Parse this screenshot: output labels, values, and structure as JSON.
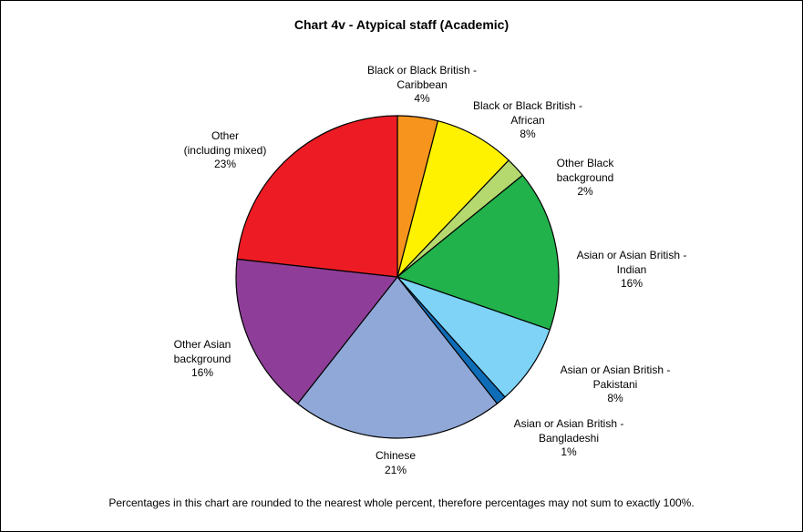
{
  "chart_data": {
    "type": "pie",
    "title": "Chart 4v - Atypical staff (Academic)",
    "footnote": "Percentages in this chart are rounded to the nearest whole percent, therefore percentages may not sum to exactly 100%.",
    "slices": [
      {
        "name": "Black or Black British - Caribbean",
        "lines": [
          "Black or Black British -",
          "Caribbean"
        ],
        "value": 4,
        "label": "4%",
        "color": "#F7941D"
      },
      {
        "name": "Black or Black British - African",
        "lines": [
          "Black or Black British -",
          "African"
        ],
        "value": 8,
        "label": "8%",
        "color": "#FFF200"
      },
      {
        "name": "Other Black background",
        "lines": [
          "Other Black",
          "background"
        ],
        "value": 2,
        "label": "2%",
        "color": "#B5D96F"
      },
      {
        "name": "Asian or Asian British - Indian",
        "lines": [
          "Asian or Asian British -",
          "Indian"
        ],
        "value": 16,
        "label": "16%",
        "color": "#21B24B"
      },
      {
        "name": "Asian or Asian British - Pakistani",
        "lines": [
          "Asian or Asian British -",
          "Pakistani"
        ],
        "value": 8,
        "label": "8%",
        "color": "#7ED3F7"
      },
      {
        "name": "Asian or Asian British - Bangladeshi",
        "lines": [
          "Asian or Asian British -",
          "Bangladeshi"
        ],
        "value": 1,
        "label": "1%",
        "color": "#0F6DB8"
      },
      {
        "name": "Chinese",
        "lines": [
          "Chinese"
        ],
        "value": 21,
        "label": "21%",
        "color": "#90A8D8"
      },
      {
        "name": "Other Asian background",
        "lines": [
          "Other Asian",
          "background"
        ],
        "value": 16,
        "label": "16%",
        "color": "#8E3E98"
      },
      {
        "name": "Other (including mixed)",
        "lines": [
          "Other",
          "(including mixed)"
        ],
        "value": 23,
        "label": "23%",
        "color": "#ED1C24"
      }
    ],
    "start": "12 o'clock",
    "direction": "clockwise"
  }
}
